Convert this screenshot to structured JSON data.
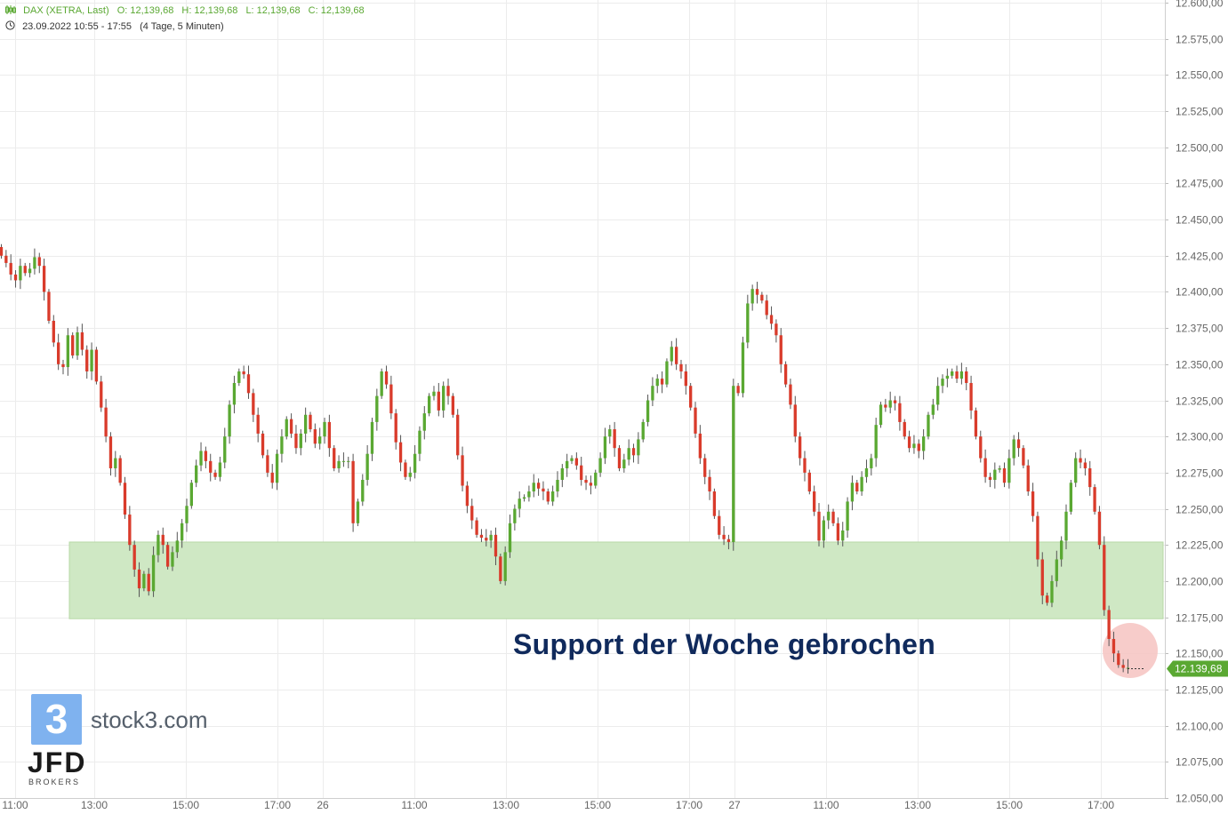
{
  "header": {
    "symbol": "DAX (XETRA, Last)",
    "open": "O: 12,139,68",
    "high": "H: 12,139,68",
    "low": "L: 12,139,68",
    "close": "C: 12,139,68",
    "range": "23.09.2022 10:55 - 17:55",
    "range_detail": "(4 Tage, 5 Minuten)"
  },
  "annotation": "Support der Woche gebrochen",
  "logo": {
    "box_glyph": "3",
    "name": "stock3.com",
    "broker": "JFD",
    "broker_sub": "BROKERS"
  },
  "colors": {
    "up": "#5aa832",
    "down": "#d93b2b",
    "support_zone": "#cfe8c4",
    "highlight": "#f6c7c4",
    "price_tag": "#5aa832"
  },
  "chart_data": {
    "type": "candlestick",
    "title": "DAX (XETRA, Last)",
    "ylim": [
      12050,
      12600
    ],
    "y_ticks": [
      "12.050,00",
      "12.075,00",
      "12.100,00",
      "12.125,00",
      "12.150,00",
      "12.175,00",
      "12.200,00",
      "12.225,00",
      "12.250,00",
      "12.275,00",
      "12.300,00",
      "12.325,00",
      "12.350,00",
      "12.375,00",
      "12.400,00",
      "12.425,00",
      "12.450,00",
      "12.475,00",
      "12.500,00",
      "12.525,00",
      "12.550,00",
      "12.575,00",
      "12.600,00"
    ],
    "x_ticks": [
      "11:00",
      "13:00",
      "15:00",
      "17:00",
      "26",
      "11:00",
      "13:00",
      "15:00",
      "17:00",
      "27",
      "11:00",
      "13:00",
      "15:00",
      "17:00"
    ],
    "last_price": "12.139,68",
    "support_zone": [
      12174,
      12227
    ],
    "grid": true,
    "series": [
      {
        "values": [
          12425,
          12420,
          12412,
          12408,
          12418,
          12413,
          12416,
          12424,
          12418,
          12400,
          12380,
          12365,
          12350,
          12348,
          12370,
          12356,
          12372,
          12360,
          12345,
          12360,
          12338,
          12320,
          12300,
          12278,
          12285,
          12268,
          12246,
          12225,
          12208,
          12195,
          12205,
          12193,
          12218,
          12232,
          12225,
          12210,
          12220,
          12228,
          12240,
          12252,
          12268,
          12280,
          12290,
          12283,
          12275,
          12272,
          12282,
          12300,
          12322,
          12337,
          12345,
          12343,
          12330,
          12315,
          12302,
          12287,
          12275,
          12268,
          12288,
          12300,
          12312,
          12302,
          12292,
          12302,
          12315,
          12305,
          12295,
          12300,
          12310,
          12292,
          12278,
          12283,
          12283,
          12283,
          12240,
          12255,
          12270,
          12288,
          12310,
          12328,
          12345,
          12336,
          12316,
          12296,
          12282,
          12272,
          12275,
          12288,
          12304,
          12316,
          12328,
          12331,
          12318,
          12335,
          12328,
          12315,
          12287,
          12266,
          12252,
          12242,
          12232,
          12230,
          12228,
          12232,
          12217,
          12200,
          12220,
          12240,
          12250,
          12257,
          12258,
          12262,
          12268,
          12264,
          12262,
          12255,
          12262,
          12270,
          12278,
          12283,
          12285,
          12280,
          12270,
          12268,
          12266,
          12275,
          12285,
          12300,
          12305,
          12292,
          12278,
          12284,
          12292,
          12287,
          12298,
          12310,
          12325,
          12335,
          12340,
          12336,
          12352,
          12362,
          12350,
          12345,
          12335,
          12320,
          12302,
          12285,
          12272,
          12262,
          12245,
          12232,
          12229,
          12227,
          12335,
          12330,
          12365,
          12392,
          12402,
          12398,
          12394,
          12384,
          12378,
          12370,
          12350,
          12336,
          12322,
          12300,
          12285,
          12275,
          12262,
          12248,
          12228,
          12242,
          12248,
          12240,
          12228,
          12235,
          12255,
          12268,
          12262,
          12272,
          12278,
          12285,
          12308,
          12322,
          12320,
          12325,
          12323,
          12310,
          12300,
          12292,
          12295,
          12290,
          12300,
          12315,
          12322,
          12335,
          12340,
          12342,
          12345,
          12340,
          12345,
          12337,
          12318,
          12300,
          12285,
          12272,
          12270,
          12277,
          12278,
          12268,
          12285,
          12298,
          12292,
          12280,
          12262,
          12245,
          12215,
          12190,
          12185,
          12200,
          12215,
          12228,
          12248,
          12268,
          12285,
          12282,
          12278,
          12265,
          12248,
          12225,
          12180,
          12160,
          12150,
          12142,
          12140,
          12140
        ]
      }
    ]
  }
}
